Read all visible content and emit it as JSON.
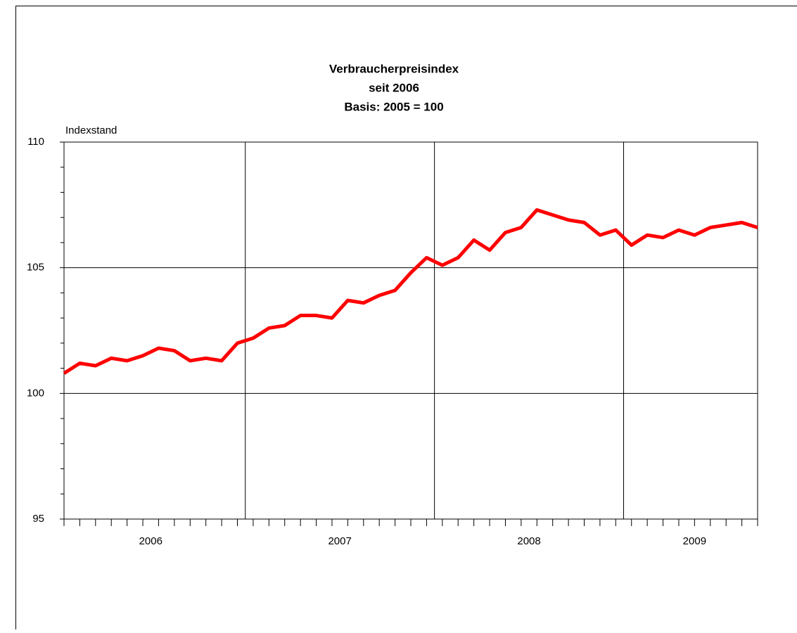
{
  "chart_data": {
    "type": "line",
    "title": [
      "Verbraucherpreisindex",
      "seit 2006",
      "Basis: 2005 = 100"
    ],
    "y_label": "Indexstand",
    "years": [
      "2006",
      "2007",
      "2008",
      "2009"
    ],
    "series": [
      {
        "color": "#ff0000",
        "values": [
          100.8,
          101.2,
          101.1,
          101.4,
          101.3,
          101.5,
          101.8,
          101.7,
          101.3,
          101.4,
          101.3,
          102.0,
          102.2,
          102.6,
          102.7,
          103.1,
          103.1,
          103.0,
          103.7,
          103.6,
          103.9,
          104.1,
          104.8,
          105.4,
          105.1,
          105.4,
          106.1,
          105.7,
          106.4,
          106.6,
          107.3,
          107.1,
          106.9,
          106.8,
          106.3,
          106.5,
          105.9,
          106.3,
          106.2,
          106.5,
          106.3,
          106.6,
          106.7,
          106.8,
          106.6
        ]
      }
    ],
    "ylim": [
      95,
      110
    ],
    "yticks": [
      95,
      100,
      105,
      110
    ],
    "yminorticks": [
      96,
      97,
      98,
      99,
      101,
      102,
      103,
      104,
      106,
      107,
      108,
      109
    ],
    "grid": true
  }
}
